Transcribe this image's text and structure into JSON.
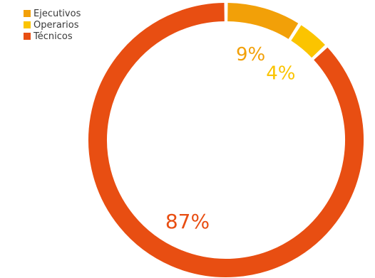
{
  "chart_data": {
    "type": "pie",
    "style": "donut",
    "title": "",
    "categories": [
      "Ejecutivos",
      "Operarios",
      "Técnicos"
    ],
    "values": [
      9,
      4,
      87
    ],
    "labels": [
      "9%",
      "4%",
      "87%"
    ],
    "colors": [
      "#F2A008",
      "#FBC400",
      "#E84E12"
    ],
    "legend_position": "top-left"
  }
}
